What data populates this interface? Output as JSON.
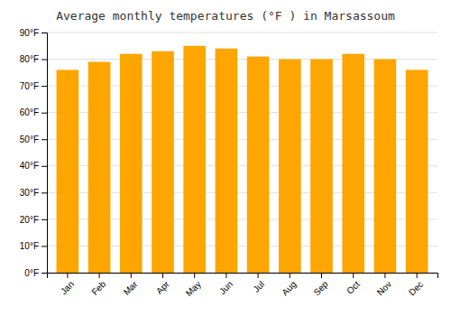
{
  "chart_data": {
    "type": "bar",
    "title": "Average monthly temperatures (°F ) in Marsassoum",
    "categories": [
      "Jan",
      "Feb",
      "Mar",
      "Apr",
      "May",
      "Jun",
      "Jul",
      "Aug",
      "Sep",
      "Oct",
      "Nov",
      "Dec"
    ],
    "values": [
      76,
      79,
      82,
      83,
      85,
      84,
      81,
      80,
      80,
      82,
      80,
      76
    ],
    "color": "#FFA500",
    "ylim": [
      0,
      90
    ],
    "yticks": [
      {
        "value": 0,
        "label": "0°F"
      },
      {
        "value": 10,
        "label": "10°F"
      },
      {
        "value": 20,
        "label": "20°F"
      },
      {
        "value": 30,
        "label": "30°F"
      },
      {
        "value": 40,
        "label": "40°F"
      },
      {
        "value": 50,
        "label": "50°F"
      },
      {
        "value": 60,
        "label": "60°F"
      },
      {
        "value": 70,
        "label": "70°F"
      },
      {
        "value": 80,
        "label": "80°F"
      },
      {
        "value": 90,
        "label": "90°F"
      }
    ],
    "grid": true
  }
}
